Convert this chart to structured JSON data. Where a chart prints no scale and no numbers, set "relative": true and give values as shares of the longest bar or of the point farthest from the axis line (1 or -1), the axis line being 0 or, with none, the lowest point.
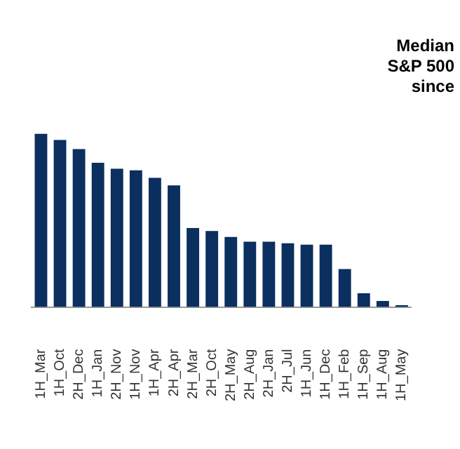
{
  "chart_data": {
    "type": "bar",
    "title": "Median\nS&P 500\nsince",
    "categories": [
      "1H_Mar",
      "1H_Oct",
      "2H_Dec",
      "1H_Jan",
      "2H_Nov",
      "1H_Nov",
      "1H_Apr",
      "2H_Apr",
      "2H_Mar",
      "2H_Oct",
      "2H_May",
      "2H_Aug",
      "2H_Jan",
      "2H_Jul",
      "1H_Jun",
      "1H_Dec",
      "1H_Feb",
      "1H_Sep",
      "1H_Aug",
      "1H_May"
    ],
    "values": [
      1,
      0.965,
      0.912,
      0.833,
      0.798,
      0.789,
      0.746,
      0.702,
      0.456,
      0.439,
      0.404,
      0.377,
      0.377,
      0.368,
      0.36,
      0.36,
      0.219,
      0.079,
      0.035,
      0.01
    ],
    "color": "#0b2f5e",
    "relative": true,
    "grid": false,
    "legend": false
  }
}
